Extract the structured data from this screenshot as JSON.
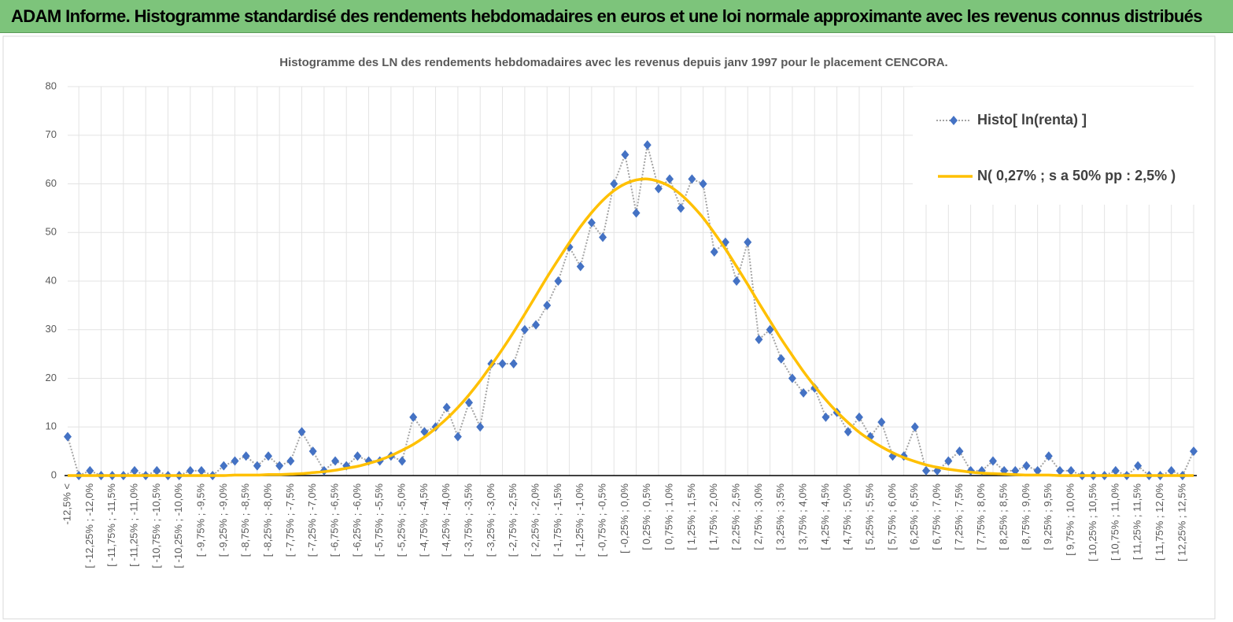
{
  "header": {
    "title": "ADAM Informe. Histogramme standardisé des rendements hebdomadaires en euros et une loi normale approximante avec les revenus connus distribués"
  },
  "chart_data": {
    "type": "line",
    "title": "Histogramme des LN des rendements hebdomadaires avec les revenus depuis janv 1997 pour le placement CENCORA.",
    "categories": [
      "-12,5% <",
      null,
      "[ -12,25% ; -12,0%",
      null,
      "[ -11,75% ; -11,5%",
      null,
      "[ -11,25% ; -11,0%",
      null,
      "[ -10,75% ; -10,5%",
      null,
      "[ -10,25% ; -10,0%",
      null,
      "[ -9,75% ; -9,5%",
      null,
      "[ -9,25% ; -9,0%",
      null,
      "[ -8,75% ; -8,5%",
      null,
      "[ -8,25% ; -8,0%",
      null,
      "[ -7,75% ; -7,5%",
      null,
      "[ -7,25% ; -7,0%",
      null,
      "[ -6,75% ; -6,5%",
      null,
      "[ -6,25% ; -6,0%",
      null,
      "[ -5,75% ; -5,5%",
      null,
      "[ -5,25% ; -5,0%",
      null,
      "[ -4,75% ; -4,5%",
      null,
      "[ -4,25% ; -4,0%",
      null,
      "[ -3,75% ; -3,5%",
      null,
      "[ -3,25% ; -3,0%",
      null,
      "[ -2,75% ; -2,5%",
      null,
      "[ -2,25% ; -2,0%",
      null,
      "[ -1,75% ; -1,5%",
      null,
      "[ -1,25% ; -1,0%",
      null,
      "[ -0,75% ; -0,5%",
      null,
      "[ -0,25% ; 0,0%",
      null,
      "[ 0,25% ; 0,5%",
      null,
      "[ 0,75% ; 1,0%",
      null,
      "[ 1,25% ; 1,5%",
      null,
      "[ 1,75% ; 2,0%",
      null,
      "[ 2,25% ; 2,5%",
      null,
      "[ 2,75% ; 3,0%",
      null,
      "[ 3,25% ; 3,5%",
      null,
      "[ 3,75% ; 4,0%",
      null,
      "[ 4,25% ; 4,5%",
      null,
      "[ 4,75% ; 5,0%",
      null,
      "[ 5,25% ; 5,5%",
      null,
      "[ 5,75% ; 6,0%",
      null,
      "[ 6,25% ; 6,5%",
      null,
      "[ 6,75% ; 7,0%",
      null,
      "[ 7,25% ; 7,5%",
      null,
      "[ 7,75% ; 8,0%",
      null,
      "[ 8,25% ; 8,5%",
      null,
      "[ 8,75% ; 9,0%",
      null,
      "[ 9,25% ; 9,5%",
      null,
      "[ 9,75% ; 10,0%",
      null,
      "[ 10,25% ; 10,5%",
      null,
      "[ 10,75% ; 11,0%",
      null,
      "[ 11,25% ; 11,5%",
      null,
      "[ 11,75% ; 12,0%",
      null,
      "[ 12,25% ; 12,5%",
      null
    ],
    "series": [
      {
        "name": "Histo[ ln(renta) ]",
        "color": "#4472c4",
        "line_color": "#a5a5a5",
        "marker": "diamond",
        "values": [
          8,
          0,
          1,
          0,
          0,
          0,
          1,
          0,
          1,
          0,
          0,
          1,
          1,
          0,
          2,
          3,
          4,
          2,
          4,
          2,
          3,
          9,
          5,
          1,
          3,
          2,
          4,
          3,
          3,
          4,
          3,
          12,
          9,
          10,
          14,
          8,
          15,
          10,
          23,
          23,
          23,
          30,
          31,
          35,
          40,
          47,
          43,
          52,
          49,
          60,
          66,
          54,
          68,
          59,
          61,
          55,
          61,
          60,
          46,
          48,
          40,
          48,
          28,
          30,
          24,
          20,
          17,
          18,
          12,
          13,
          9,
          12,
          8,
          11,
          4,
          4,
          10,
          1,
          1,
          3,
          5,
          1,
          1,
          3,
          1,
          1,
          2,
          1,
          4,
          1,
          1,
          0,
          0,
          0,
          1,
          0,
          2,
          0,
          0,
          1,
          0,
          5
        ]
      },
      {
        "name": "N( 0,27% ; s a 50% pp : 2,5% )",
        "color": "#ffc000",
        "marker": "none",
        "values": [
          0,
          0,
          0,
          0,
          0,
          0,
          0,
          0,
          0,
          0,
          0,
          0,
          0,
          0,
          0,
          0.1,
          0.1,
          0.1,
          0.2,
          0.2,
          0.3,
          0.4,
          0.6,
          0.8,
          1.1,
          1.5,
          1.9,
          2.5,
          3.2,
          4.1,
          5.2,
          6.4,
          7.9,
          9.7,
          11.7,
          14.0,
          16.6,
          19.5,
          22.7,
          26.0,
          29.5,
          33.2,
          37.0,
          40.8,
          44.4,
          47.9,
          51.2,
          54.1,
          56.6,
          58.6,
          60.0,
          60.8,
          61.0,
          60.5,
          59.5,
          57.8,
          55.6,
          53.0,
          49.9,
          46.6,
          43.0,
          39.3,
          35.5,
          31.8,
          28.1,
          24.7,
          21.4,
          18.4,
          15.6,
          13.1,
          10.9,
          8.9,
          7.3,
          5.9,
          4.7,
          3.7,
          2.9,
          2.2,
          1.7,
          1.3,
          1.0,
          0.7,
          0.5,
          0.4,
          0.3,
          0.2,
          0.1,
          0.1,
          0.1,
          0,
          0,
          0,
          0,
          0,
          0,
          0,
          0,
          0,
          0,
          0,
          0,
          0
        ]
      }
    ],
    "ylim": [
      0,
      80
    ],
    "yticks": [
      0,
      10,
      20,
      30,
      40,
      50,
      60,
      70,
      80
    ],
    "grid": true,
    "legend": "top-right"
  }
}
